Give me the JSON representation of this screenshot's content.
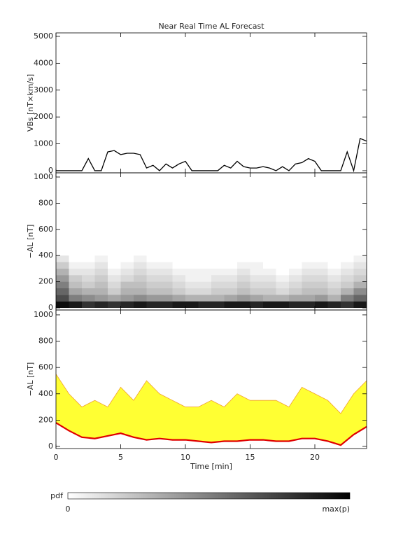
{
  "chart_data": [
    {
      "type": "line",
      "title": "Near Real Time AL Forecast",
      "ylabel": "VBs [nT×km/s]",
      "color": "#000000",
      "x": [
        0,
        0.5,
        1,
        1.5,
        2,
        2.5,
        3,
        3.5,
        4,
        4.5,
        5,
        5.5,
        6,
        6.5,
        7,
        7.5,
        8,
        8.5,
        9,
        9.5,
        10,
        10.5,
        11,
        11.5,
        12,
        12.5,
        13,
        13.5,
        14,
        14.5,
        15,
        15.5,
        16,
        16.5,
        17,
        17.5,
        18,
        18.5,
        19,
        19.5,
        20,
        20.5,
        21,
        21.5,
        22,
        22.5,
        23,
        23.5,
        24
      ],
      "values": [
        0,
        0,
        0,
        0,
        0,
        450,
        0,
        0,
        700,
        750,
        600,
        650,
        650,
        600,
        100,
        200,
        0,
        250,
        100,
        250,
        350,
        0,
        0,
        0,
        0,
        0,
        200,
        100,
        350,
        150,
        100,
        100,
        150,
        100,
        0,
        150,
        0,
        250,
        300,
        450,
        350,
        0,
        0,
        0,
        0,
        700,
        0,
        1200,
        1100
      ],
      "xlim": [
        0,
        24
      ],
      "xticks": [
        0,
        5,
        10,
        15,
        20
      ],
      "xtick_labels": false,
      "ylim": [
        -80,
        5130
      ],
      "yticks": [
        0,
        1000,
        2000,
        3000,
        4000,
        5000
      ]
    },
    {
      "type": "heatmap",
      "ylabel": "−AL [nT]",
      "color": "#000000",
      "xbins": [
        0,
        1,
        2,
        3,
        4,
        5,
        6,
        7,
        8,
        9,
        10,
        11,
        12,
        13,
        14,
        15,
        16,
        17,
        18,
        19,
        20,
        21,
        22,
        23,
        24
      ],
      "ybins": [
        0,
        50,
        100,
        150,
        200,
        250,
        300,
        350,
        400
      ],
      "z": [
        [
          0.95,
          0.9,
          0.8,
          0.85,
          0.8,
          0.85,
          0.9,
          0.85,
          0.85,
          0.9,
          0.9,
          0.85,
          0.85,
          0.9,
          0.9,
          0.85,
          0.9,
          0.9,
          0.85,
          0.85,
          0.9,
          0.85,
          0.8,
          0.9
        ],
        [
          0.7,
          0.5,
          0.45,
          0.4,
          0.35,
          0.4,
          0.45,
          0.4,
          0.4,
          0.35,
          0.3,
          0.3,
          0.3,
          0.35,
          0.4,
          0.35,
          0.3,
          0.3,
          0.35,
          0.35,
          0.4,
          0.3,
          0.5,
          0.6
        ],
        [
          0.6,
          0.35,
          0.3,
          0.3,
          0.2,
          0.3,
          0.3,
          0.25,
          0.25,
          0.2,
          0.15,
          0.15,
          0.2,
          0.2,
          0.25,
          0.2,
          0.2,
          0.15,
          0.2,
          0.25,
          0.25,
          0.2,
          0.3,
          0.45
        ],
        [
          0.5,
          0.25,
          0.2,
          0.25,
          0.15,
          0.25,
          0.25,
          0.2,
          0.2,
          0.15,
          0.1,
          0.1,
          0.15,
          0.15,
          0.2,
          0.15,
          0.15,
          0.1,
          0.15,
          0.2,
          0.2,
          0.15,
          0.2,
          0.3
        ],
        [
          0.4,
          0.2,
          0.15,
          0.2,
          0.1,
          0.15,
          0.2,
          0.15,
          0.15,
          0.1,
          0.05,
          0.05,
          0.1,
          0.1,
          0.15,
          0.1,
          0.1,
          0.05,
          0.1,
          0.15,
          0.15,
          0.1,
          0.15,
          0.2
        ],
        [
          0.3,
          0.1,
          0.1,
          0.15,
          0.05,
          0.1,
          0.15,
          0.1,
          0.1,
          0.05,
          0.05,
          0.05,
          0.05,
          0.05,
          0.1,
          0.05,
          0.05,
          0,
          0.05,
          0.1,
          0.1,
          0.05,
          0.1,
          0.15
        ],
        [
          0.2,
          0.05,
          0.05,
          0.1,
          0,
          0.05,
          0.1,
          0.05,
          0.05,
          0,
          0,
          0,
          0,
          0,
          0.05,
          0.05,
          0,
          0,
          0,
          0.05,
          0.05,
          0,
          0.05,
          0.1
        ],
        [
          0.1,
          0,
          0,
          0.05,
          0,
          0,
          0.05,
          0,
          0,
          0,
          0,
          0,
          0,
          0,
          0,
          0,
          0,
          0,
          0,
          0,
          0,
          0,
          0,
          0.05
        ]
      ],
      "xlim": [
        0,
        24
      ],
      "xticks": [
        0,
        5,
        10,
        15,
        20
      ],
      "xtick_labels": false,
      "ylim": [
        -16,
        1032
      ],
      "yticks": [
        0,
        200,
        400,
        600,
        800,
        1000
      ]
    },
    {
      "type": "band",
      "ylabel": "−AL [nT]",
      "xlabel": "Time [min]",
      "x": [
        0,
        1,
        2,
        3,
        4,
        5,
        6,
        7,
        8,
        9,
        10,
        11,
        12,
        13,
        14,
        15,
        16,
        17,
        18,
        19,
        20,
        21,
        22,
        23,
        24
      ],
      "series": [
        {
          "color": "#e00000",
          "values": [
            180,
            120,
            70,
            60,
            80,
            100,
            70,
            50,
            60,
            50,
            50,
            40,
            30,
            40,
            40,
            50,
            50,
            40,
            40,
            60,
            60,
            40,
            10,
            90,
            150
          ]
        },
        {
          "color": "#f0a030",
          "fill": "#ffff33",
          "values": [
            550,
            400,
            300,
            350,
            300,
            450,
            350,
            500,
            400,
            350,
            300,
            300,
            350,
            300,
            400,
            350,
            350,
            350,
            300,
            450,
            400,
            350,
            250,
            400,
            500
          ]
        }
      ],
      "xlim": [
        0,
        24
      ],
      "xticks": [
        0,
        5,
        10,
        15,
        20
      ],
      "xtick_labels": true,
      "ylim": [
        -16,
        1037
      ],
      "yticks": [
        0,
        200,
        400,
        600,
        800,
        1000
      ]
    }
  ],
  "colorbar": {
    "label": "pdf",
    "min_label": "0",
    "max_label": "max(p)"
  }
}
